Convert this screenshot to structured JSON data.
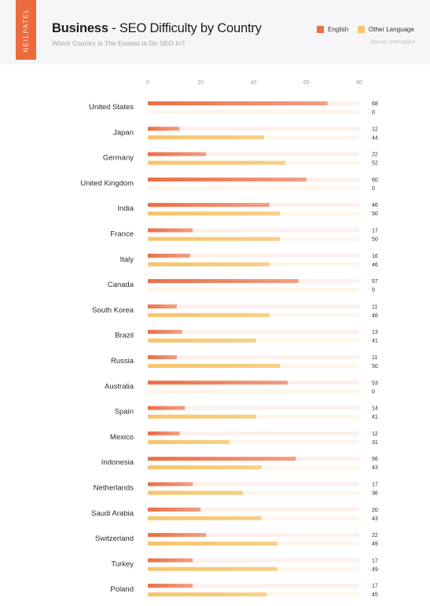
{
  "brand": "NEILPATEL",
  "title_bold": "Business",
  "title_rest": " - SEO Difficulty by Country",
  "subtitle": "Which Country Is The Easiest to Do SEO In?",
  "source": "Source: Ubersuggest",
  "legend": [
    {
      "label": "English",
      "color": "#ea6e44"
    },
    {
      "label": "Other Language",
      "color": "#f6c46a"
    }
  ],
  "chart_data": {
    "type": "bar",
    "orientation": "horizontal",
    "xlim": [
      0,
      80
    ],
    "x_ticks": [
      0,
      20,
      40,
      60,
      80
    ],
    "grid": false,
    "legend_position": "top-right",
    "categories": [
      "United States",
      "Japan",
      "Germany",
      "United Kingdom",
      "India",
      "France",
      "Italy",
      "Canada",
      "South Korea",
      "Brazil",
      "Russia",
      "Australia",
      "Spain",
      "Mexico",
      "Indonesia",
      "Netherlands",
      "Saudi Arabia",
      "Switzerland",
      "Turkey",
      "Poland"
    ],
    "series": [
      {
        "name": "English",
        "color": "#ea6e44",
        "track_color": "#fdf0ed",
        "values": [
          68,
          12,
          22,
          60,
          46,
          17,
          16,
          57,
          11,
          13,
          11,
          53,
          14,
          12,
          56,
          17,
          20,
          22,
          17,
          17
        ]
      },
      {
        "name": "Other Language",
        "color": "#f6c46a",
        "track_color": "#fdf6ea",
        "values": [
          0,
          44,
          52,
          0,
          50,
          50,
          46,
          0,
          46,
          41,
          50,
          0,
          41,
          31,
          43,
          36,
          43,
          49,
          49,
          45
        ]
      }
    ]
  }
}
